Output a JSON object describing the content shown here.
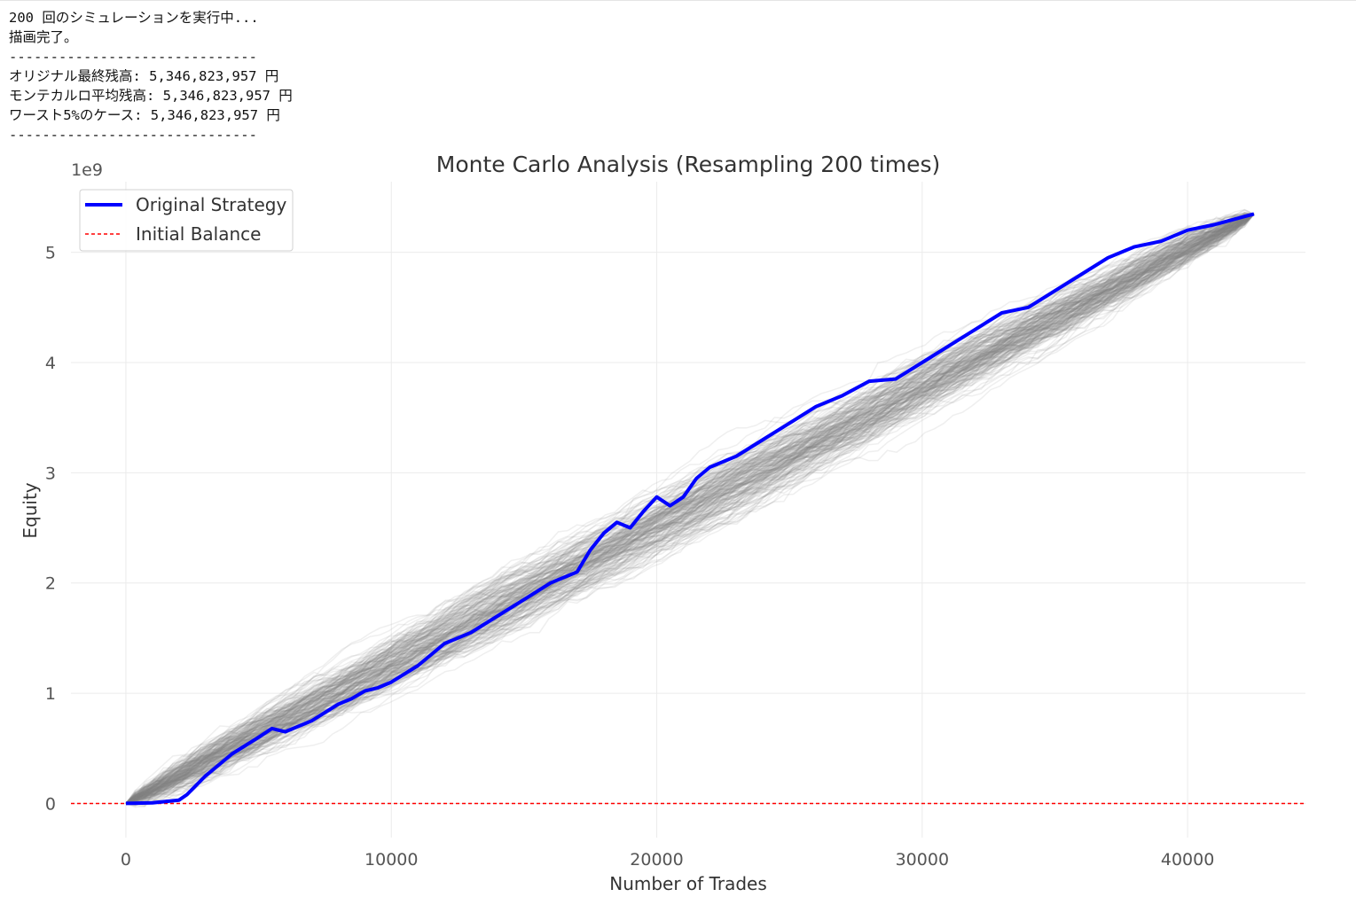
{
  "console": {
    "lines": [
      "200 回のシミュレーションを実行中...",
      "描画完了。",
      "------------------------------",
      "オリジナル最終残高: 5,346,823,957 円",
      "モンテカルロ平均残高: 5,346,823,957 円",
      "ワースト5%のケース: 5,346,823,957 円",
      "------------------------------"
    ]
  },
  "chart_data": {
    "type": "line",
    "title": "Monte Carlo Analysis (Resampling 200 times)",
    "xlabel": "Number of Trades",
    "ylabel": "Equity",
    "y_offset_label": "1e9",
    "xlim": [
      -2070,
      44440
    ],
    "ylim": [
      -0.31,
      5.64
    ],
    "x_ticks": [
      0,
      10000,
      20000,
      30000,
      40000
    ],
    "x_tick_labels": [
      "0",
      "10000",
      "20000",
      "30000",
      "40000"
    ],
    "y_ticks": [
      0,
      1,
      2,
      3,
      4,
      5
    ],
    "y_tick_labels": [
      "0",
      "1",
      "2",
      "3",
      "4",
      "5"
    ],
    "grid": true,
    "legend_placement": "upper-left",
    "simulation_count": 200,
    "simulation_color": "#808080",
    "final_equity": 5.346823957,
    "total_trades": 42500,
    "series": [
      {
        "name": "Original Strategy",
        "color": "#0000ff",
        "x": [
          0,
          1000,
          2000,
          2300,
          3000,
          4000,
          5000,
          5500,
          6000,
          7000,
          8000,
          8500,
          9000,
          9500,
          10000,
          11000,
          12000,
          13000,
          14000,
          15000,
          16000,
          17000,
          17500,
          18000,
          18500,
          19000,
          19500,
          20000,
          20500,
          21000,
          21500,
          22000,
          23000,
          24000,
          25000,
          26000,
          27000,
          28000,
          29000,
          30000,
          31000,
          32000,
          33000,
          34000,
          35000,
          36000,
          37000,
          38000,
          39000,
          40000,
          41000,
          42500
        ],
        "y": [
          0,
          0.005,
          0.03,
          0.08,
          0.25,
          0.45,
          0.6,
          0.68,
          0.65,
          0.75,
          0.9,
          0.95,
          1.02,
          1.05,
          1.1,
          1.25,
          1.45,
          1.55,
          1.7,
          1.85,
          2.0,
          2.1,
          2.3,
          2.45,
          2.55,
          2.5,
          2.65,
          2.78,
          2.7,
          2.78,
          2.95,
          3.05,
          3.15,
          3.3,
          3.45,
          3.6,
          3.7,
          3.83,
          3.85,
          4.0,
          4.15,
          4.3,
          4.45,
          4.5,
          4.65,
          4.8,
          4.95,
          5.05,
          5.1,
          5.2,
          5.25,
          5.347
        ]
      },
      {
        "name": "Initial Balance",
        "color": "#ff0000",
        "style": "dashed",
        "y": 0
      }
    ]
  }
}
